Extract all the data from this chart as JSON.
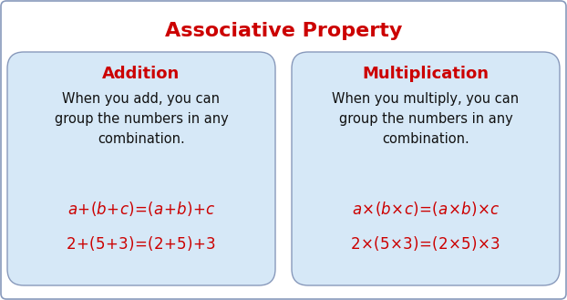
{
  "title": "Associative Property",
  "title_color": "#cc0000",
  "title_fontsize": 16,
  "title_fontweight": "bold",
  "bg_color": "#ffffff",
  "border_color": "#8899bb",
  "box_bg_color": "#d6e8f7",
  "box_border_color": "#8899bb",
  "left_header": "Addition",
  "right_header": "Multiplication",
  "header_color": "#cc0000",
  "header_fontsize": 13,
  "header_fontweight": "bold",
  "body_color": "#111111",
  "body_fontsize": 10.5,
  "left_body": "When you add, you can\ngroup the numbers in any\ncombination.",
  "right_body": "When you multiply, you can\ngroup the numbers in any\ncombination.",
  "formula_color": "#cc0000",
  "formula_fontsize": 12,
  "left_formula1": "$a\\!+\\!(b\\!+\\!c)\\!=\\!(a\\!+\\!b)\\!+\\!c$",
  "left_formula2": "$2\\!+\\!(5\\!+\\!3)\\!=\\!(2\\!+\\!5)\\!+\\!3$",
  "right_formula1": "$a\\!\\times\\!(b\\!\\times\\!c)\\!=\\!(a\\!\\times\\!b)\\!\\times\\!c$",
  "right_formula2": "$2\\!\\times\\!(5\\!\\times\\!3)\\!=\\!(2\\!\\times\\!5)\\!\\times\\!3$"
}
